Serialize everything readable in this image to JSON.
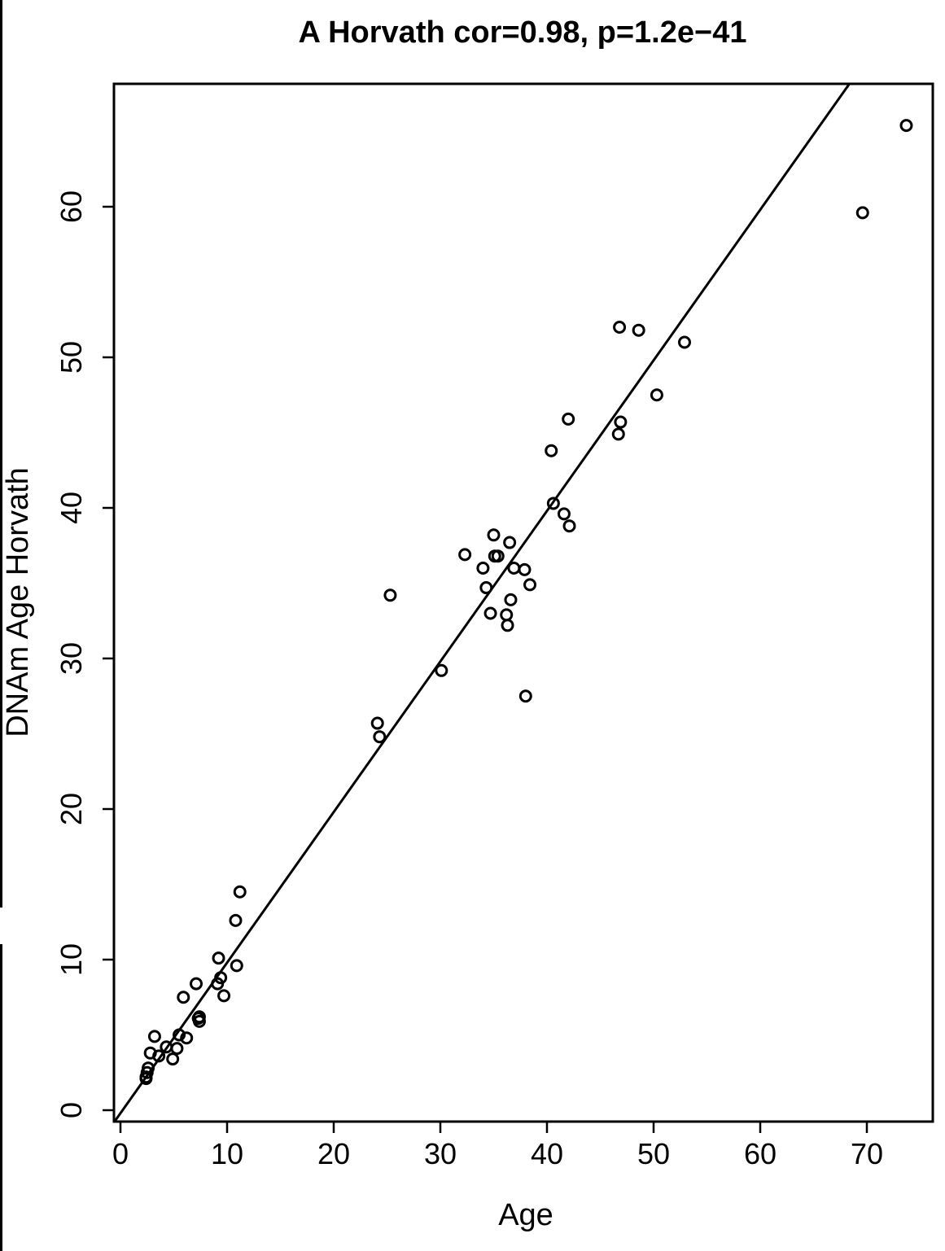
{
  "chart_data": {
    "type": "scatter",
    "title": "A Horvath cor=0.98, p=1.2e−41",
    "xlabel": "Age",
    "ylabel": "DNAm Age Horvath",
    "x_ticks": [
      "0",
      "10",
      "20",
      "30",
      "40",
      "50",
      "60",
      "70"
    ],
    "y_ticks": [
      "0",
      "10",
      "20",
      "30",
      "40",
      "50",
      "60"
    ],
    "xlim": [
      -0.5,
      76.5
    ],
    "ylim": [
      -0.5,
      68.5
    ],
    "grid": false,
    "legend": "none",
    "colors": {
      "points": "#000000",
      "line": "#000000",
      "frame": "#000000"
    },
    "trend_line": {
      "intercept": -0.2,
      "slope": 1.0
    },
    "series": [
      {
        "points": [
          [
            2.4,
            2.1
          ],
          [
            2.5,
            2.5
          ],
          [
            2.6,
            2.8
          ],
          [
            2.4,
            2.2
          ],
          [
            2.8,
            3.8
          ],
          [
            3.2,
            4.9
          ],
          [
            3.6,
            3.6
          ],
          [
            4.3,
            4.2
          ],
          [
            4.9,
            3.4
          ],
          [
            5.3,
            4.1
          ],
          [
            5.5,
            5.0
          ],
          [
            5.9,
            7.5
          ],
          [
            6.2,
            4.8
          ],
          [
            7.1,
            8.4
          ],
          [
            7.3,
            6.1
          ],
          [
            7.4,
            5.9
          ],
          [
            7.4,
            6.2
          ],
          [
            9.1,
            8.4
          ],
          [
            9.2,
            10.1
          ],
          [
            9.4,
            8.8
          ],
          [
            9.7,
            7.6
          ],
          [
            10.8,
            12.6
          ],
          [
            10.9,
            9.6
          ],
          [
            11.2,
            14.5
          ],
          [
            24.1,
            25.7
          ],
          [
            24.3,
            24.8
          ],
          [
            25.3,
            34.2
          ],
          [
            30.1,
            29.2
          ],
          [
            32.3,
            36.9
          ],
          [
            34.0,
            36.0
          ],
          [
            34.3,
            34.7
          ],
          [
            34.7,
            33.0
          ],
          [
            35.0,
            38.2
          ],
          [
            35.1,
            36.8
          ],
          [
            35.4,
            36.8
          ],
          [
            36.2,
            32.9
          ],
          [
            36.3,
            32.2
          ],
          [
            36.5,
            37.7
          ],
          [
            36.6,
            33.9
          ],
          [
            36.9,
            36.0
          ],
          [
            37.9,
            35.9
          ],
          [
            38.0,
            27.5
          ],
          [
            38.4,
            34.9
          ],
          [
            40.4,
            43.8
          ],
          [
            40.6,
            40.3
          ],
          [
            41.6,
            39.6
          ],
          [
            42.1,
            38.8
          ],
          [
            42.0,
            45.9
          ],
          [
            46.7,
            44.9
          ],
          [
            46.9,
            45.7
          ],
          [
            46.8,
            52.0
          ],
          [
            48.6,
            51.8
          ],
          [
            50.3,
            47.5
          ],
          [
            52.9,
            51.0
          ],
          [
            69.6,
            59.6
          ],
          [
            73.7,
            65.4
          ]
        ]
      }
    ]
  }
}
